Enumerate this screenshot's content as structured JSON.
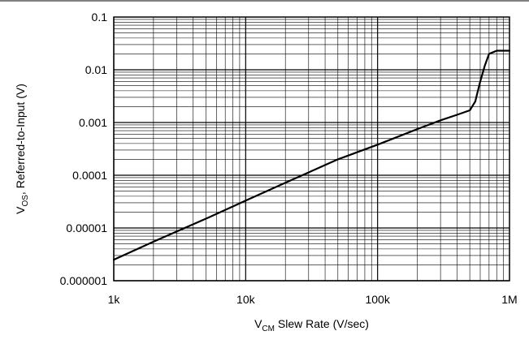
{
  "chart_data": {
    "type": "line",
    "x_scale": "log",
    "y_scale": "log",
    "xlim": [
      1000,
      1000000
    ],
    "ylim": [
      1e-06,
      0.1
    ],
    "grid": true,
    "xlabel": {
      "main": "V",
      "sub": "CM",
      "rest": " Slew Rate (V/sec)"
    },
    "ylabel": {
      "main": "V",
      "sub": "OS",
      "rest": ", Referred-to-Input (V)"
    },
    "x_ticks": [
      {
        "value": 1000,
        "label": "1k"
      },
      {
        "value": 10000,
        "label": "10k"
      },
      {
        "value": 100000,
        "label": "100k"
      },
      {
        "value": 1000000,
        "label": "1M"
      }
    ],
    "y_ticks": [
      {
        "value": 0.1,
        "label": "0.1"
      },
      {
        "value": 0.01,
        "label": "0.01"
      },
      {
        "value": 0.001,
        "label": "0.001"
      },
      {
        "value": 0.0001,
        "label": "0.0001"
      },
      {
        "value": 1e-05,
        "label": "0.00001"
      },
      {
        "value": 1e-06,
        "label": "0.000001"
      }
    ],
    "series": [
      {
        "color": "#000000",
        "x": [
          1000,
          2000,
          5000,
          10000,
          20000,
          50000,
          100000,
          200000,
          300000,
          400000,
          500000,
          550000,
          600000,
          650000,
          700000,
          800000,
          1000000
        ],
        "y": [
          2.5e-06,
          5.5e-06,
          1.5e-05,
          3.3e-05,
          7.2e-05,
          0.0002,
          0.00038,
          0.00075,
          0.0011,
          0.0014,
          0.0017,
          0.0025,
          0.006,
          0.012,
          0.02,
          0.023,
          0.023
        ]
      }
    ]
  }
}
